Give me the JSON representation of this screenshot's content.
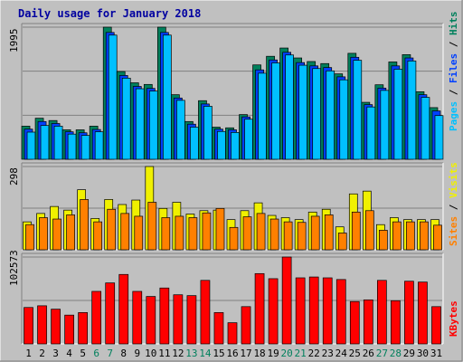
{
  "title": "Daily usage for January 2018",
  "colors": {
    "background": "#C0C0C0",
    "panel": "#C0C0C0",
    "title": "#0000A0",
    "hits": "#00805C",
    "files": "#0040FF",
    "pages": "#00C0FF",
    "visits": "#F0F000",
    "sites": "#FF8000",
    "kbytes": "#FF0000",
    "weekend": "#00805C",
    "weekday": "#000000"
  },
  "chart_data": [
    {
      "type": "bar",
      "panel": "hits-files-pages",
      "right_label": [
        "Pages",
        "Files",
        "Hits"
      ],
      "ymax_label": "1995",
      "ymax": 1995,
      "categories": [
        "1",
        "2",
        "3",
        "4",
        "5",
        "6",
        "7",
        "8",
        "9",
        "10",
        "11",
        "12",
        "13",
        "14",
        "15",
        "16",
        "17",
        "18",
        "19",
        "20",
        "21",
        "22",
        "23",
        "24",
        "25",
        "26",
        "27",
        "28",
        "29",
        "30",
        "31"
      ],
      "series": [
        {
          "name": "Hits",
          "values": [
            500,
            620,
            585,
            445,
            445,
            500,
            1995,
            1325,
            1155,
            1130,
            1995,
            975,
            570,
            885,
            485,
            475,
            675,
            1425,
            1555,
            1680,
            1530,
            1476,
            1445,
            1290,
            1600,
            860,
            1125,
            1470,
            1580,
            1020,
            780
          ]
        },
        {
          "name": "Files",
          "values": [
            455,
            570,
            540,
            415,
            400,
            450,
            1915,
            1265,
            1100,
            1070,
            1915,
            925,
            530,
            835,
            455,
            445,
            640,
            1350,
            1500,
            1615,
            1460,
            1410,
            1385,
            1245,
            1540,
            825,
            1075,
            1410,
            1530,
            975,
            730
          ]
        },
        {
          "name": "Pages",
          "values": [
            410,
            510,
            500,
            380,
            360,
            415,
            1875,
            1225,
            1065,
            1030,
            1875,
            890,
            485,
            800,
            420,
            405,
            605,
            1300,
            1455,
            1575,
            1420,
            1370,
            1335,
            1200,
            1495,
            790,
            1040,
            1360,
            1485,
            935,
            660
          ]
        }
      ]
    },
    {
      "type": "bar",
      "panel": "visits-sites",
      "right_label": [
        "Sites",
        "Visits"
      ],
      "ymax_label": "298",
      "ymax": 298,
      "categories": [
        "1",
        "2",
        "3",
        "4",
        "5",
        "6",
        "7",
        "8",
        "9",
        "10",
        "11",
        "12",
        "13",
        "14",
        "15",
        "16",
        "17",
        "18",
        "19",
        "20",
        "21",
        "22",
        "23",
        "24",
        "25",
        "26",
        "27",
        "28",
        "29",
        "30",
        "31"
      ],
      "series": [
        {
          "name": "Visits",
          "values": [
            100,
            130,
            155,
            142,
            215,
            112,
            180,
            162,
            178,
            298,
            148,
            170,
            128,
            140,
            142,
            108,
            140,
            168,
            123,
            115,
            108,
            135,
            145,
            82,
            200,
            210,
            90,
            115,
            108,
            108,
            108
          ]
        },
        {
          "name": "Sites",
          "values": [
            90,
            115,
            110,
            125,
            180,
            100,
            145,
            130,
            120,
            170,
            115,
            120,
            115,
            132,
            148,
            80,
            118,
            130,
            110,
            100,
            98,
            120,
            125,
            60,
            135,
            140,
            70,
            100,
            100,
            100,
            88
          ]
        }
      ]
    },
    {
      "type": "bar",
      "panel": "kbytes",
      "right_label": [
        "KBytes"
      ],
      "ymax_label": "102573",
      "ymax": 102573,
      "categories": [
        "1",
        "2",
        "3",
        "4",
        "5",
        "6",
        "7",
        "8",
        "9",
        "10",
        "11",
        "12",
        "13",
        "14",
        "15",
        "16",
        "17",
        "18",
        "19",
        "20",
        "21",
        "22",
        "23",
        "24",
        "25",
        "26",
        "27",
        "28",
        "29",
        "30",
        "31"
      ],
      "series": [
        {
          "name": "KBytes",
          "values": [
            43000,
            45000,
            41000,
            34000,
            37000,
            62000,
            72000,
            82000,
            62000,
            56000,
            66000,
            58000,
            57000,
            75000,
            37000,
            25000,
            44000,
            83000,
            77000,
            102573,
            78000,
            79000,
            78000,
            76000,
            50000,
            52000,
            75000,
            51000,
            74000,
            73000,
            44000
          ]
        }
      ]
    }
  ],
  "x_labels": [
    "1",
    "2",
    "3",
    "4",
    "5",
    "6",
    "7",
    "8",
    "9",
    "10",
    "11",
    "12",
    "13",
    "14",
    "15",
    "16",
    "17",
    "18",
    "19",
    "20",
    "21",
    "22",
    "23",
    "24",
    "25",
    "26",
    "27",
    "28",
    "29",
    "30",
    "31"
  ],
  "weekend_days": [
    "6",
    "7",
    "13",
    "14",
    "20",
    "21",
    "27",
    "28"
  ]
}
